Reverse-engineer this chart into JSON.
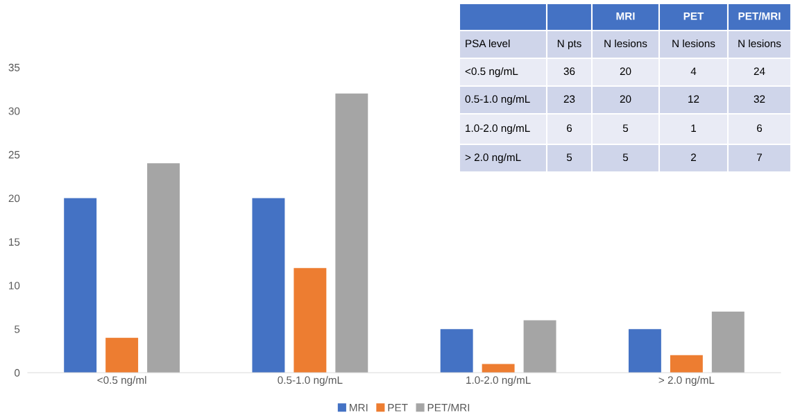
{
  "chart_data": [
    {
      "type": "bar",
      "categories": [
        "<0.5 ng/ml",
        "0.5-1.0 ng/mL",
        "1.0-2.0 ng/mL",
        "> 2.0 ng/mL"
      ],
      "series": [
        {
          "name": "MRI",
          "color": "#4472c4",
          "values": [
            20,
            20,
            5,
            5
          ]
        },
        {
          "name": "PET",
          "color": "#ed7d31",
          "values": [
            4,
            12,
            1,
            2
          ]
        },
        {
          "name": "PET/MRI",
          "color": "#a5a5a5",
          "values": [
            24,
            32,
            6,
            7
          ]
        }
      ],
      "ylim": [
        0,
        35
      ],
      "yticks": [
        0,
        5,
        10,
        15,
        20,
        25,
        30,
        35
      ],
      "grid": false,
      "legend": "bottom"
    },
    {
      "type": "other",
      "annotations": [
        "MRI",
        "PET",
        "PET/MRI",
        "PSA level",
        "N pts",
        "N lesions",
        "N lesions",
        "N lesions",
        "<0.5 ng/mL",
        "36",
        "20",
        "4",
        "24",
        "0.5-1.0 ng/mL",
        "23",
        "20",
        "12",
        "32",
        "1.0-2.0 ng/mL",
        "6",
        "5",
        "1",
        "6",
        "> 2.0 ng/mL",
        "5",
        "5",
        "2",
        "7"
      ]
    }
  ]
}
